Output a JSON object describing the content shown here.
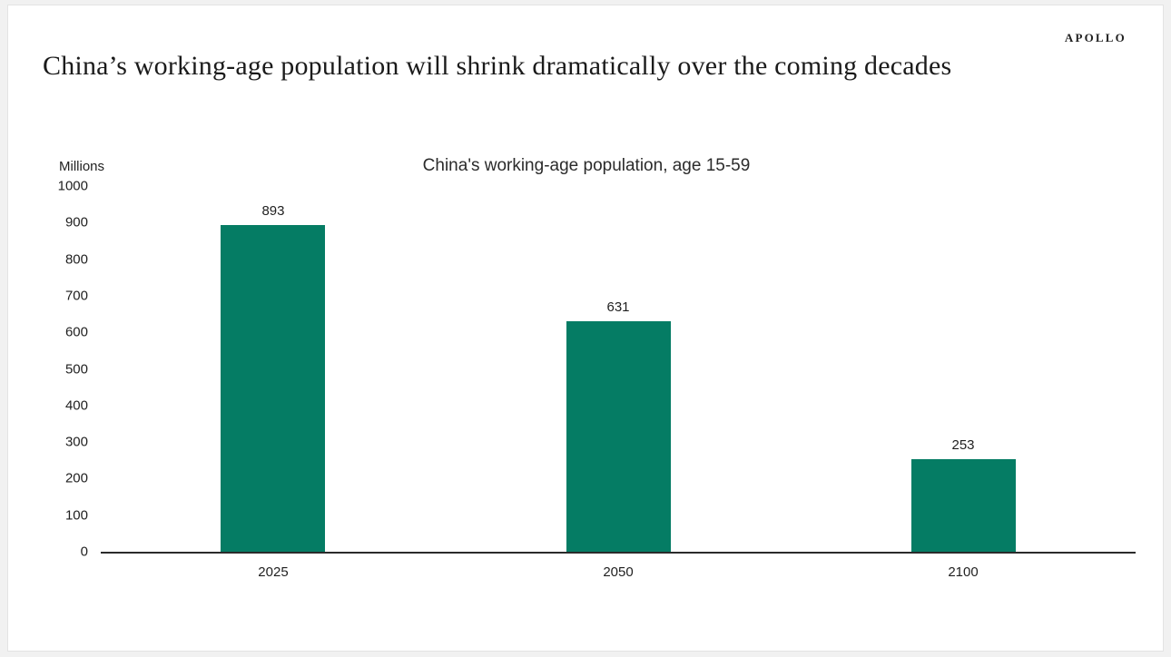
{
  "page": {
    "brand": "APOLLO",
    "title": "China’s working-age population will shrink dramatically over the coming decades"
  },
  "chart_data": {
    "type": "bar",
    "title": "China's working-age population, age 15-59",
    "unit_label": "Millions",
    "categories": [
      "2025",
      "2050",
      "2100"
    ],
    "values": [
      893,
      631,
      253
    ],
    "value_labels": [
      "893",
      "631",
      "253"
    ],
    "xlabel": "",
    "ylabel": "Millions",
    "ylim": [
      0,
      1000
    ],
    "yticks": [
      0,
      100,
      200,
      300,
      400,
      500,
      600,
      700,
      800,
      900,
      1000
    ],
    "grid": false,
    "legend": false,
    "bar_color": "#057c64",
    "axis_color": "#2b2b2b",
    "text_color": "#1f1f1f"
  }
}
